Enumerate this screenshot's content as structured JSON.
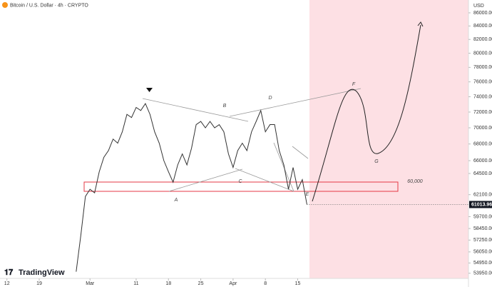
{
  "chart_data": {
    "type": "line",
    "title": "Bitcoin / U.S. Dollar · 4h · CRYPTO",
    "currency": "USD",
    "brand": "TradingView",
    "x": [
      15,
      16,
      17,
      18,
      19,
      20,
      21,
      22,
      23,
      24,
      25,
      26,
      27,
      28,
      29,
      30,
      31,
      32,
      33,
      34,
      35,
      36,
      37,
      38,
      39,
      40,
      41,
      42,
      43,
      44,
      45,
      46,
      47,
      48,
      49,
      50,
      51,
      52,
      53,
      54,
      55,
      56,
      57,
      58,
      59,
      60,
      61,
      62,
      63,
      64,
      65
    ],
    "values": [
      54100,
      57700,
      61900,
      62700,
      62300,
      64700,
      66400,
      67200,
      68600,
      68100,
      69500,
      71700,
      71300,
      72600,
      72200,
      73100,
      71700,
      69500,
      68100,
      66000,
      64700,
      63500,
      65500,
      66800,
      65500,
      67500,
      70400,
      70800,
      70000,
      70800,
      70000,
      70400,
      69500,
      66800,
      65200,
      67200,
      68100,
      67200,
      69500,
      70800,
      72200,
      69500,
      70400,
      70400,
      67200,
      65500,
      62700,
      65200,
      62700,
      63800,
      61013.96
    ],
    "color": "#333333",
    "log_scale": true,
    "grid": false,
    "xlim": [
      -1.5,
      100
    ],
    "ylim": [
      53450,
      88000
    ],
    "xticks": [
      {
        "value": 0,
        "label": "12"
      },
      {
        "value": 7,
        "label": "19"
      },
      {
        "value": 18,
        "label": "Mar"
      },
      {
        "value": 28,
        "label": "11"
      },
      {
        "value": 35,
        "label": "18"
      },
      {
        "value": 42,
        "label": "25"
      },
      {
        "value": 49,
        "label": "Apr"
      },
      {
        "value": 56,
        "label": "8"
      },
      {
        "value": 63,
        "label": "15"
      }
    ],
    "yticks": [
      {
        "value": 86000,
        "label": "86000.00"
      },
      {
        "value": 84000,
        "label": "84000.00"
      },
      {
        "value": 82000,
        "label": "82000.00"
      },
      {
        "value": 80000,
        "label": "80000.00"
      },
      {
        "value": 78000,
        "label": "78000.00"
      },
      {
        "value": 76000,
        "label": "76000.00"
      },
      {
        "value": 74000,
        "label": "74000.00"
      },
      {
        "value": 72000,
        "label": "72000.00"
      },
      {
        "value": 70000,
        "label": "70000.00"
      },
      {
        "value": 68000,
        "label": "68000.00"
      },
      {
        "value": 66000,
        "label": "66000.00"
      },
      {
        "value": 64500,
        "label": "64500.00"
      },
      {
        "value": 62100,
        "label": "62100.00"
      },
      {
        "value": 59700,
        "label": "59700.00"
      },
      {
        "value": 58450,
        "label": "58450.00"
      },
      {
        "value": 57250,
        "label": "57250.00"
      },
      {
        "value": 56050,
        "label": "56050.00"
      },
      {
        "value": 54950,
        "label": "54950.00"
      },
      {
        "value": 53950,
        "label": "53950.00"
      }
    ],
    "annotations": [
      "A",
      "B",
      "C",
      "D",
      "E",
      "F",
      "G",
      "60,000"
    ]
  }
}
